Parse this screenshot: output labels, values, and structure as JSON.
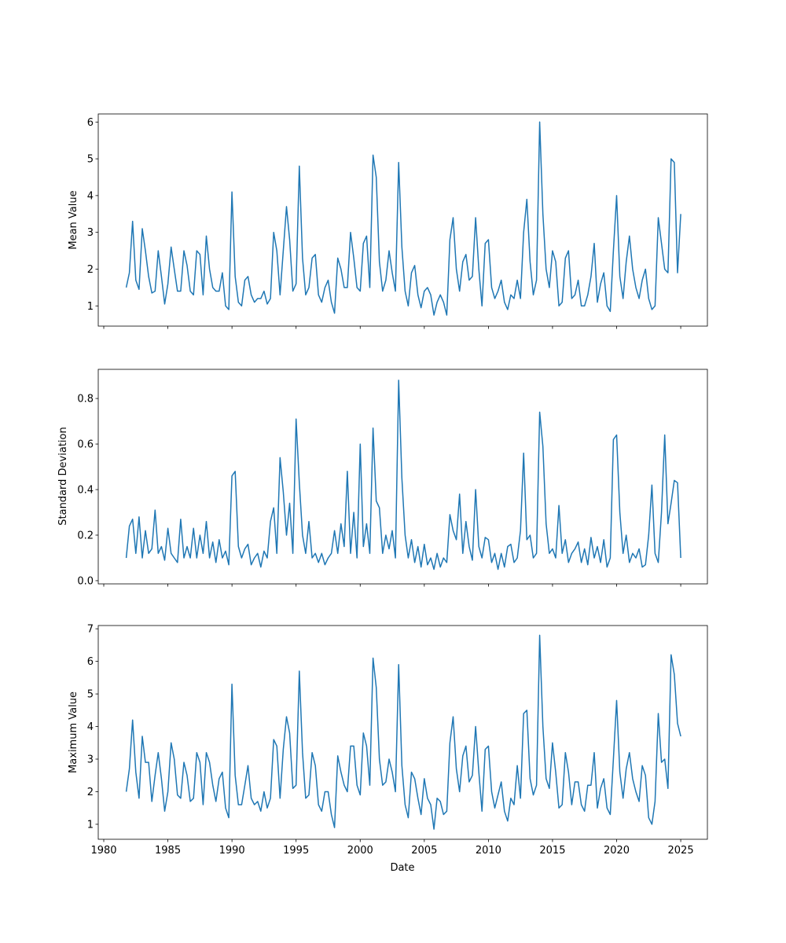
{
  "chart_data": [
    {
      "type": "line",
      "ylabel": "Mean Value",
      "xlabel": "",
      "x_start": 1981.75,
      "x_step": 0.25,
      "xlim": [
        1979.57,
        2027.08
      ],
      "ylim": [
        0.45,
        6.22
      ],
      "yticks": [
        1,
        2,
        3,
        4,
        5,
        6
      ],
      "ytick_labels": [
        "1",
        "2",
        "3",
        "4",
        "5",
        "6"
      ],
      "color": "#1f77b4",
      "values": [
        1.5,
        1.9,
        3.3,
        1.7,
        1.45,
        3.1,
        2.5,
        1.8,
        1.35,
        1.4,
        2.5,
        1.8,
        1.05,
        1.6,
        2.6,
        2.0,
        1.4,
        1.4,
        2.5,
        2.1,
        1.4,
        1.3,
        2.5,
        2.4,
        1.3,
        2.9,
        2.0,
        1.5,
        1.4,
        1.4,
        1.9,
        1.0,
        0.9,
        4.1,
        1.8,
        1.1,
        1.0,
        1.7,
        1.8,
        1.3,
        1.1,
        1.2,
        1.2,
        1.4,
        1.05,
        1.2,
        3.0,
        2.5,
        1.3,
        2.5,
        3.7,
        2.8,
        1.4,
        1.6,
        4.8,
        2.3,
        1.3,
        1.5,
        2.3,
        2.4,
        1.3,
        1.1,
        1.5,
        1.7,
        1.1,
        0.8,
        2.3,
        2.0,
        1.5,
        1.5,
        3.0,
        2.3,
        1.5,
        1.4,
        2.7,
        2.9,
        1.5,
        5.1,
        4.5,
        2.2,
        1.4,
        1.7,
        2.5,
        1.9,
        1.4,
        4.9,
        2.6,
        1.4,
        1.0,
        1.9,
        2.1,
        1.3,
        0.95,
        1.4,
        1.5,
        1.3,
        0.75,
        1.1,
        1.3,
        1.1,
        0.75,
        2.8,
        3.4,
        2.0,
        1.4,
        2.2,
        2.4,
        1.7,
        1.8,
        3.4,
        2.0,
        1.0,
        2.7,
        2.8,
        1.5,
        1.2,
        1.4,
        1.7,
        1.1,
        0.9,
        1.3,
        1.2,
        1.7,
        1.2,
        3.0,
        3.9,
        2.2,
        1.3,
        1.7,
        6.0,
        3.5,
        2.0,
        1.5,
        2.5,
        2.2,
        1.0,
        1.1,
        2.3,
        2.5,
        1.2,
        1.3,
        1.7,
        1.0,
        1.0,
        1.3,
        1.8,
        2.7,
        1.1,
        1.6,
        1.9,
        1.0,
        0.85,
        2.5,
        4.0,
        1.8,
        1.2,
        2.2,
        2.9,
        2.0,
        1.5,
        1.2,
        1.7,
        2.0,
        1.2,
        0.9,
        1.0,
        3.4,
        2.7,
        2.0,
        1.9,
        5.0,
        4.9,
        1.9,
        3.5
      ]
    },
    {
      "type": "line",
      "ylabel": "Standard Deviation",
      "xlabel": "",
      "x_start": 1981.75,
      "x_step": 0.25,
      "xlim": [
        1979.57,
        2027.08
      ],
      "ylim": [
        -0.014,
        0.928
      ],
      "yticks": [
        0.0,
        0.2,
        0.4,
        0.6,
        0.8
      ],
      "ytick_labels": [
        "0.0",
        "0.2",
        "0.4",
        "0.6",
        "0.8"
      ],
      "color": "#1f77b4",
      "values": [
        0.1,
        0.24,
        0.27,
        0.12,
        0.28,
        0.1,
        0.22,
        0.12,
        0.14,
        0.31,
        0.12,
        0.15,
        0.09,
        0.23,
        0.12,
        0.1,
        0.08,
        0.27,
        0.1,
        0.15,
        0.1,
        0.23,
        0.1,
        0.2,
        0.12,
        0.26,
        0.1,
        0.17,
        0.08,
        0.18,
        0.1,
        0.13,
        0.07,
        0.46,
        0.48,
        0.15,
        0.1,
        0.14,
        0.16,
        0.07,
        0.1,
        0.12,
        0.06,
        0.13,
        0.1,
        0.26,
        0.32,
        0.12,
        0.54,
        0.39,
        0.2,
        0.34,
        0.12,
        0.71,
        0.43,
        0.2,
        0.12,
        0.26,
        0.1,
        0.12,
        0.08,
        0.12,
        0.07,
        0.1,
        0.12,
        0.22,
        0.12,
        0.25,
        0.15,
        0.48,
        0.12,
        0.3,
        0.1,
        0.6,
        0.15,
        0.25,
        0.12,
        0.67,
        0.35,
        0.32,
        0.12,
        0.2,
        0.14,
        0.22,
        0.1,
        0.88,
        0.45,
        0.2,
        0.1,
        0.18,
        0.08,
        0.15,
        0.06,
        0.16,
        0.07,
        0.1,
        0.05,
        0.12,
        0.06,
        0.1,
        0.08,
        0.29,
        0.22,
        0.18,
        0.38,
        0.12,
        0.26,
        0.15,
        0.09,
        0.4,
        0.15,
        0.1,
        0.19,
        0.18,
        0.08,
        0.12,
        0.05,
        0.12,
        0.06,
        0.15,
        0.16,
        0.08,
        0.1,
        0.22,
        0.56,
        0.18,
        0.2,
        0.1,
        0.12,
        0.74,
        0.59,
        0.25,
        0.12,
        0.14,
        0.1,
        0.33,
        0.12,
        0.18,
        0.08,
        0.12,
        0.14,
        0.17,
        0.08,
        0.14,
        0.07,
        0.19,
        0.1,
        0.15,
        0.08,
        0.18,
        0.06,
        0.1,
        0.62,
        0.64,
        0.3,
        0.12,
        0.2,
        0.08,
        0.12,
        0.1,
        0.14,
        0.06,
        0.07,
        0.2,
        0.42,
        0.12,
        0.08,
        0.3,
        0.64,
        0.25,
        0.34,
        0.44,
        0.43,
        0.1
      ]
    },
    {
      "type": "line",
      "ylabel": "Maximum Value",
      "xlabel": "Date",
      "x_start": 1981.75,
      "x_step": 0.25,
      "xlim": [
        1979.57,
        2027.08
      ],
      "ylim": [
        0.54,
        7.1
      ],
      "yticks": [
        1,
        2,
        3,
        4,
        5,
        6,
        7
      ],
      "ytick_labels": [
        "1",
        "2",
        "3",
        "4",
        "5",
        "6",
        "7"
      ],
      "xticks": [
        1980,
        1985,
        1990,
        1995,
        2000,
        2005,
        2010,
        2015,
        2020,
        2025
      ],
      "xtick_labels": [
        "1980",
        "1985",
        "1990",
        "1995",
        "2000",
        "2005",
        "2010",
        "2015",
        "2020",
        "2025"
      ],
      "color": "#1f77b4",
      "values": [
        2.0,
        2.7,
        4.2,
        2.6,
        1.8,
        3.7,
        2.9,
        2.9,
        1.7,
        2.5,
        3.2,
        2.4,
        1.4,
        2.0,
        3.5,
        3.0,
        1.9,
        1.8,
        2.9,
        2.5,
        1.7,
        1.8,
        3.2,
        2.9,
        1.6,
        3.2,
        2.9,
        2.2,
        1.7,
        2.4,
        2.6,
        1.5,
        1.2,
        5.3,
        2.5,
        1.6,
        1.6,
        2.2,
        2.8,
        1.8,
        1.6,
        1.7,
        1.4,
        2.0,
        1.5,
        1.8,
        3.6,
        3.4,
        1.8,
        3.3,
        4.3,
        3.8,
        2.1,
        2.2,
        5.7,
        3.2,
        1.8,
        1.9,
        3.2,
        2.8,
        1.6,
        1.4,
        2.0,
        2.0,
        1.3,
        0.9,
        3.1,
        2.6,
        2.2,
        2.0,
        3.4,
        3.4,
        2.2,
        1.9,
        3.8,
        3.4,
        2.2,
        6.1,
        5.2,
        3.0,
        2.2,
        2.3,
        3.0,
        2.6,
        2.0,
        5.9,
        2.8,
        1.6,
        1.2,
        2.6,
        2.4,
        1.8,
        1.3,
        2.4,
        1.8,
        1.6,
        0.85,
        1.8,
        1.7,
        1.3,
        1.4,
        3.5,
        4.3,
        2.7,
        2.0,
        3.1,
        3.4,
        2.3,
        2.5,
        4.0,
        2.6,
        1.4,
        3.3,
        3.4,
        2.0,
        1.5,
        1.9,
        2.3,
        1.4,
        1.1,
        1.8,
        1.6,
        2.8,
        1.8,
        4.4,
        4.5,
        2.4,
        1.9,
        2.2,
        6.8,
        4.0,
        2.4,
        2.1,
        3.5,
        2.6,
        1.5,
        1.6,
        3.2,
        2.6,
        1.6,
        2.3,
        2.3,
        1.6,
        1.4,
        2.2,
        2.2,
        3.2,
        1.5,
        2.1,
        2.4,
        1.5,
        1.3,
        3.0,
        4.8,
        2.6,
        1.8,
        2.7,
        3.2,
        2.4,
        2.0,
        1.7,
        2.8,
        2.5,
        1.2,
        1.0,
        1.7,
        4.4,
        2.9,
        3.0,
        2.1,
        6.2,
        5.6,
        4.1,
        3.7
      ]
    }
  ]
}
